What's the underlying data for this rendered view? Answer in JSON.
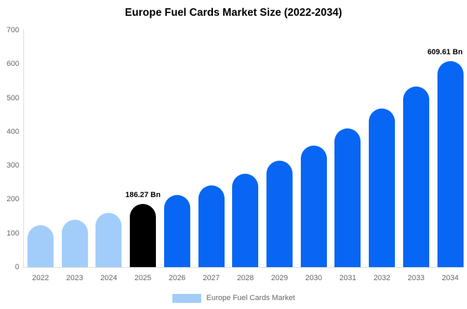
{
  "title": "Europe Fuel Cards Market Size (2022-2034)",
  "legend": {
    "label": "Europe Fuel Cards Market",
    "swatch_color": "#A2CDFA"
  },
  "colors": {
    "historical_bar": "#A2CDFA",
    "base_year_bar": "#000000",
    "forecast_bar": "#0866F5",
    "axis_text": "#666666",
    "axis_line": "#DDDDDD",
    "annotation_text": "#000000"
  },
  "chart_data": {
    "type": "bar",
    "title": "Europe Fuel Cards Market Size (2022-2034)",
    "unit": "Bn",
    "xlabel": "",
    "ylabel": "",
    "ylim": [
      0,
      700
    ],
    "y_ticks": [
      0,
      100,
      200,
      300,
      400,
      500,
      600,
      700
    ],
    "grid": false,
    "legend_position": "bottom",
    "categories": [
      "2022",
      "2023",
      "2024",
      "2025",
      "2026",
      "2027",
      "2028",
      "2029",
      "2030",
      "2031",
      "2032",
      "2033",
      "2034"
    ],
    "values": [
      123,
      141,
      161,
      186.27,
      212.5,
      242.4,
      276.6,
      315.5,
      359.9,
      410.6,
      468.4,
      534.3,
      609.61
    ],
    "bar_colors": [
      "#A2CDFA",
      "#A2CDFA",
      "#A2CDFA",
      "#000000",
      "#0866F5",
      "#0866F5",
      "#0866F5",
      "#0866F5",
      "#0866F5",
      "#0866F5",
      "#0866F5",
      "#0866F5",
      "#0866F5"
    ],
    "annotations": [
      {
        "category": "2025",
        "text": "186.27 Bn"
      },
      {
        "category": "2034",
        "text": "609.61 Bn"
      }
    ]
  }
}
